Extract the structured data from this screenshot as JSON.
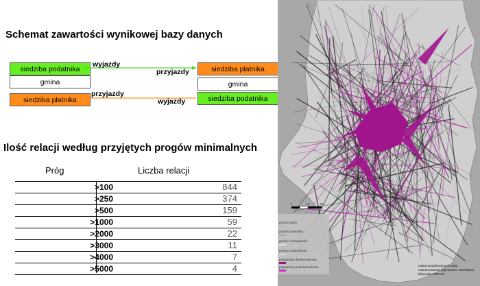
{
  "schema": {
    "title": "Schemat zawartości wynikowej bazy danych",
    "left_boxes": [
      "siedziba podatnika",
      "gmina",
      "siedziba płatnika"
    ],
    "right_boxes": [
      "siedziba płatnika",
      "gmina",
      "siedziba podatnika"
    ],
    "arrow_top": {
      "label_left": "wyjazdy",
      "label_right": "przyjazdy",
      "color": "#4fd626"
    },
    "arrow_bottom": {
      "label_left": "przyjazdy",
      "label_right": "wyjazdy",
      "color": "#ff8c1a"
    },
    "colors": {
      "green": "#66ee22",
      "orange": "#ff8c1a"
    }
  },
  "relations": {
    "title": "Ilość relacji według przyjętych progów minimalnych",
    "col_threshold": "Próg",
    "col_count": "Liczba relacji",
    "rows": [
      {
        "threshold": ">100",
        "count": "844"
      },
      {
        "threshold": ">250",
        "count": "374"
      },
      {
        "threshold": ">500",
        "count": "159"
      },
      {
        "threshold": ">1000",
        "count": "59"
      },
      {
        "threshold": ">2000",
        "count": "22"
      },
      {
        "threshold": ">3000",
        "count": "11"
      },
      {
        "threshold": ">4000",
        "count": "7"
      },
      {
        "threshold": ">5000",
        "count": "4"
      }
    ]
  },
  "map": {
    "scale": {
      "labels": [
        "0",
        "10",
        "20"
      ]
    },
    "legend": [
      "granice gmin",
      "granice powiatów",
      "granice subregionów",
      "granice województw",
      "powiązania dwukierunkowe",
      "powiązania jednokierunkowe"
    ],
    "credits": [
      "Układ współrzędnych 1992",
      "Odwzorowanie poprzeczne Merkatora",
      "Elipsoida GRS 80"
    ],
    "colors": {
      "land": "#d0d0d0",
      "outside": "#a8a8a8",
      "flow": "#a0148c",
      "lines": "#222222"
    }
  }
}
